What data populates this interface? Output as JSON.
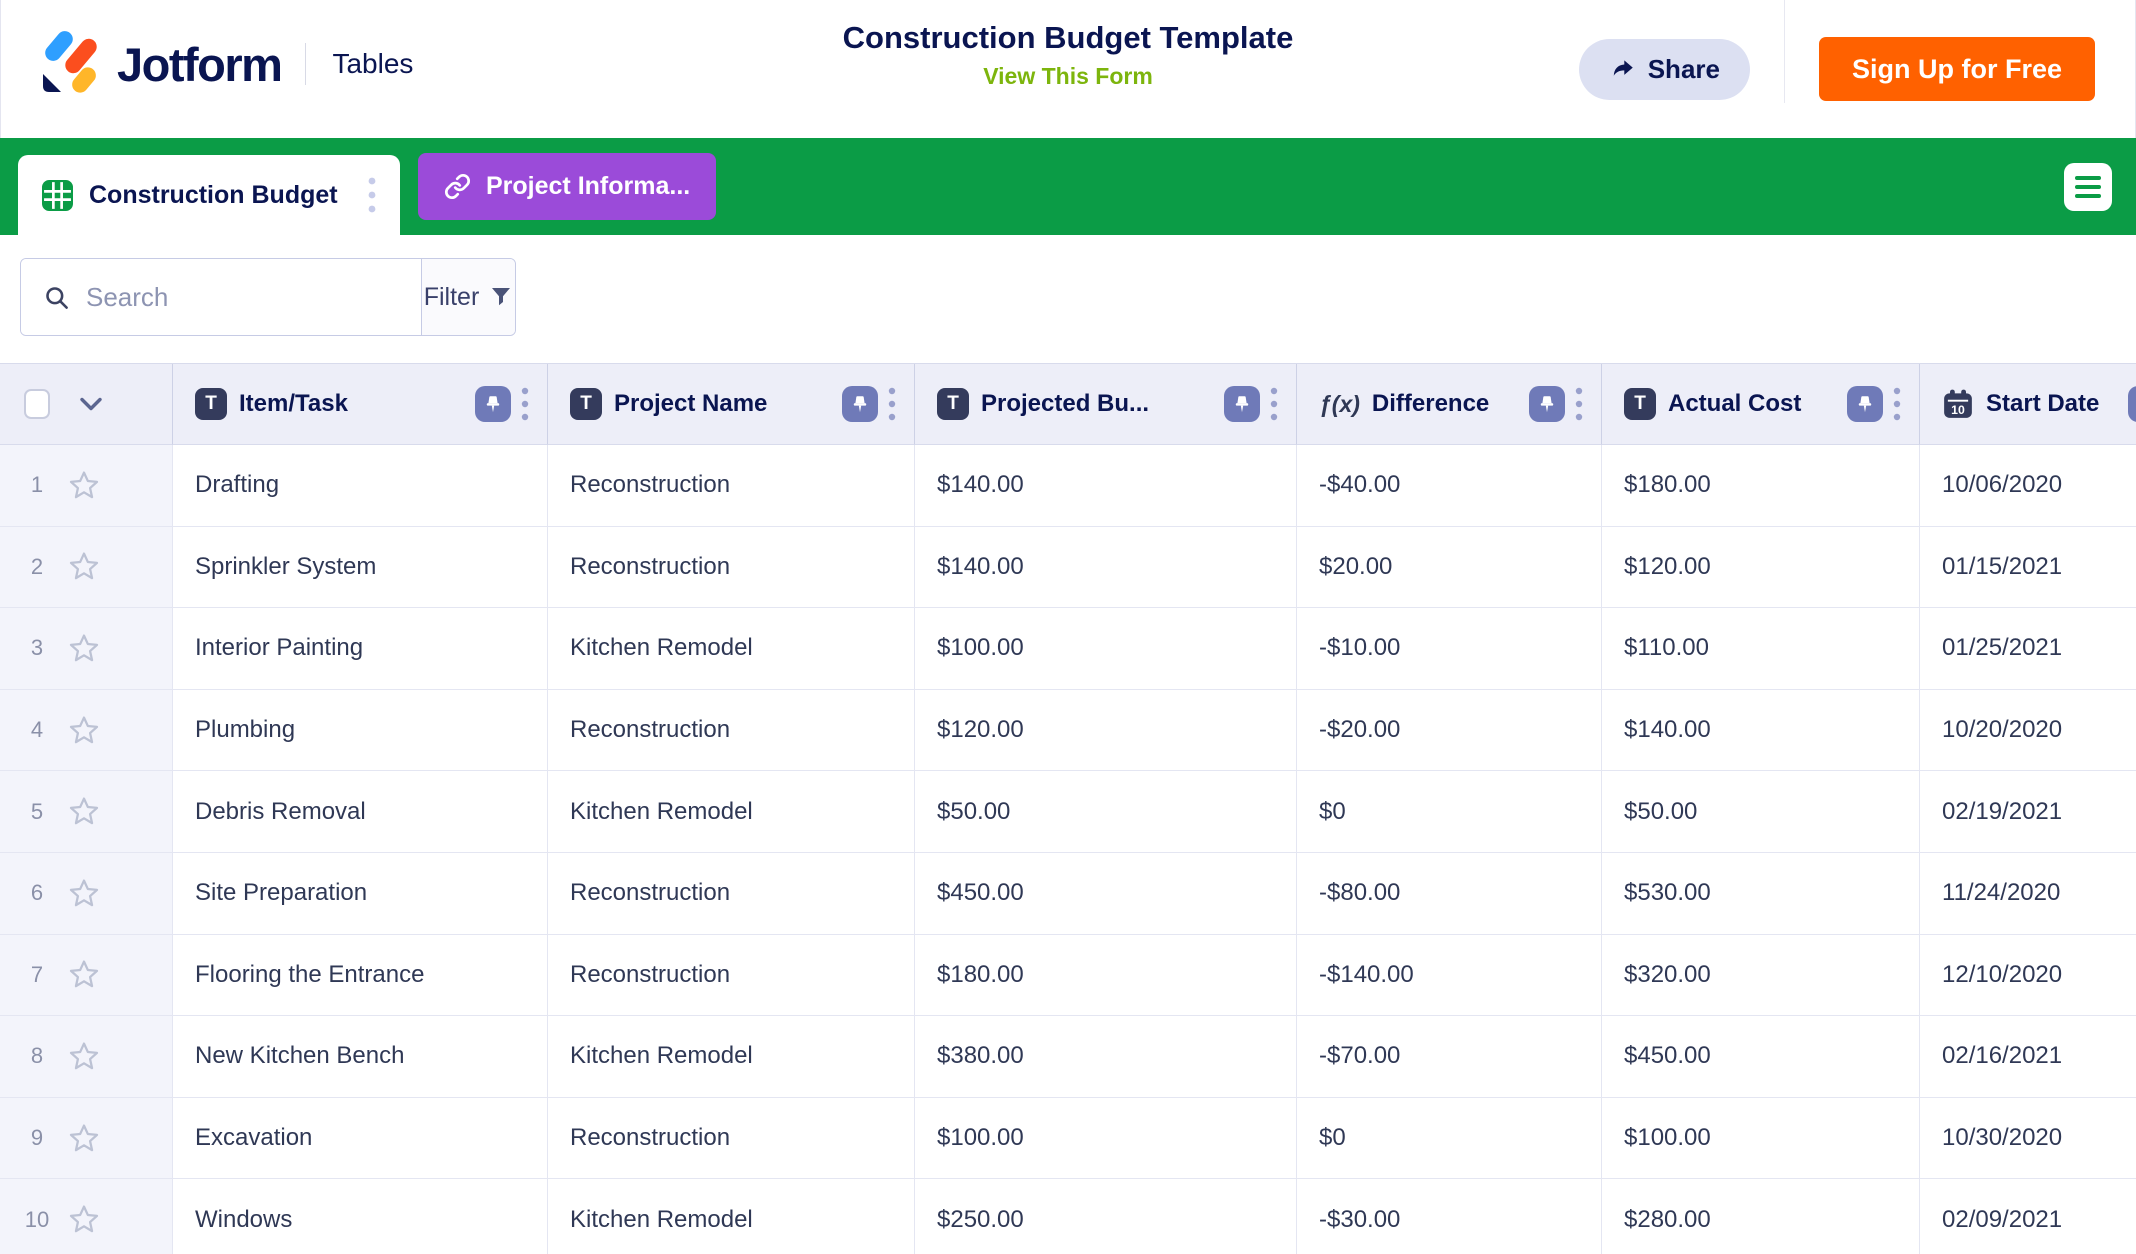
{
  "header": {
    "brand": "Jotform",
    "product": "Tables",
    "title": "Construction Budget Template",
    "view_form_label": "View This Form",
    "share_label": "Share",
    "signup_label": "Sign Up for Free"
  },
  "tabs": [
    {
      "label": "Construction Budget",
      "type": "table",
      "active": true
    },
    {
      "label": "Project Informa...",
      "type": "link",
      "active": false
    }
  ],
  "toolbar": {
    "search_placeholder": "Search",
    "filter_label": "Filter"
  },
  "table": {
    "columns": [
      {
        "label": "Item/Task",
        "type": "text"
      },
      {
        "label": "Project Name",
        "type": "text"
      },
      {
        "label": "Projected Bu...",
        "type": "text"
      },
      {
        "label": "Difference",
        "type": "formula"
      },
      {
        "label": "Actual Cost",
        "type": "text"
      },
      {
        "label": "Start Date",
        "type": "date"
      }
    ],
    "rows": [
      {
        "num": "1",
        "cells": [
          "Drafting",
          "Reconstruction",
          "$140.00",
          "-$40.00",
          "$180.00",
          "10/06/2020"
        ]
      },
      {
        "num": "2",
        "cells": [
          "Sprinkler System",
          "Reconstruction",
          "$140.00",
          "$20.00",
          "$120.00",
          "01/15/2021"
        ]
      },
      {
        "num": "3",
        "cells": [
          "Interior Painting",
          "Kitchen Remodel",
          "$100.00",
          "-$10.00",
          "$110.00",
          "01/25/2021"
        ]
      },
      {
        "num": "4",
        "cells": [
          "Plumbing",
          "Reconstruction",
          "$120.00",
          "-$20.00",
          "$140.00",
          "10/20/2020"
        ]
      },
      {
        "num": "5",
        "cells": [
          "Debris Removal",
          "Kitchen Remodel",
          "$50.00",
          "$0",
          "$50.00",
          "02/19/2021"
        ]
      },
      {
        "num": "6",
        "cells": [
          "Site Preparation",
          "Reconstruction",
          "$450.00",
          "-$80.00",
          "$530.00",
          "11/24/2020"
        ]
      },
      {
        "num": "7",
        "cells": [
          "Flooring the Entrance",
          "Reconstruction",
          "$180.00",
          "-$140.00",
          "$320.00",
          "12/10/2020"
        ]
      },
      {
        "num": "8",
        "cells": [
          "New Kitchen Bench",
          "Kitchen Remodel",
          "$380.00",
          "-$70.00",
          "$450.00",
          "02/16/2021"
        ]
      },
      {
        "num": "9",
        "cells": [
          "Excavation",
          "Reconstruction",
          "$100.00",
          "$0",
          "$100.00",
          "10/30/2020"
        ]
      },
      {
        "num": "10",
        "cells": [
          "Windows",
          "Kitchen Remodel",
          "$250.00",
          "-$30.00",
          "$280.00",
          "02/09/2021"
        ]
      }
    ]
  },
  "icons": {
    "logo": "jotform-mark",
    "share": "forward-arrow",
    "active_tab": "table-grid",
    "link_tab": "link-chain",
    "menu": "hamburger",
    "search": "magnifier",
    "filter": "funnel",
    "column_text": "T-badge",
    "column_formula": "fx",
    "column_date": "calendar-10",
    "pin": "pushpin",
    "column_menu": "kebab-dots",
    "select_all": "checkbox",
    "expand_rows": "chevron-down",
    "row_favorite": "star-outline"
  },
  "colors": {
    "navy": "#0A1551",
    "green": "#0B9C46",
    "purple": "#9B4BD9",
    "orange": "#FF6100",
    "link_green": "#7DB50D",
    "pin_bg": "#6F7AB8",
    "header_bg": "#EDEEF8",
    "logo_blue": "#2E9FFF",
    "logo_red": "#FB4E1E",
    "logo_yellow": "#FFB629"
  }
}
